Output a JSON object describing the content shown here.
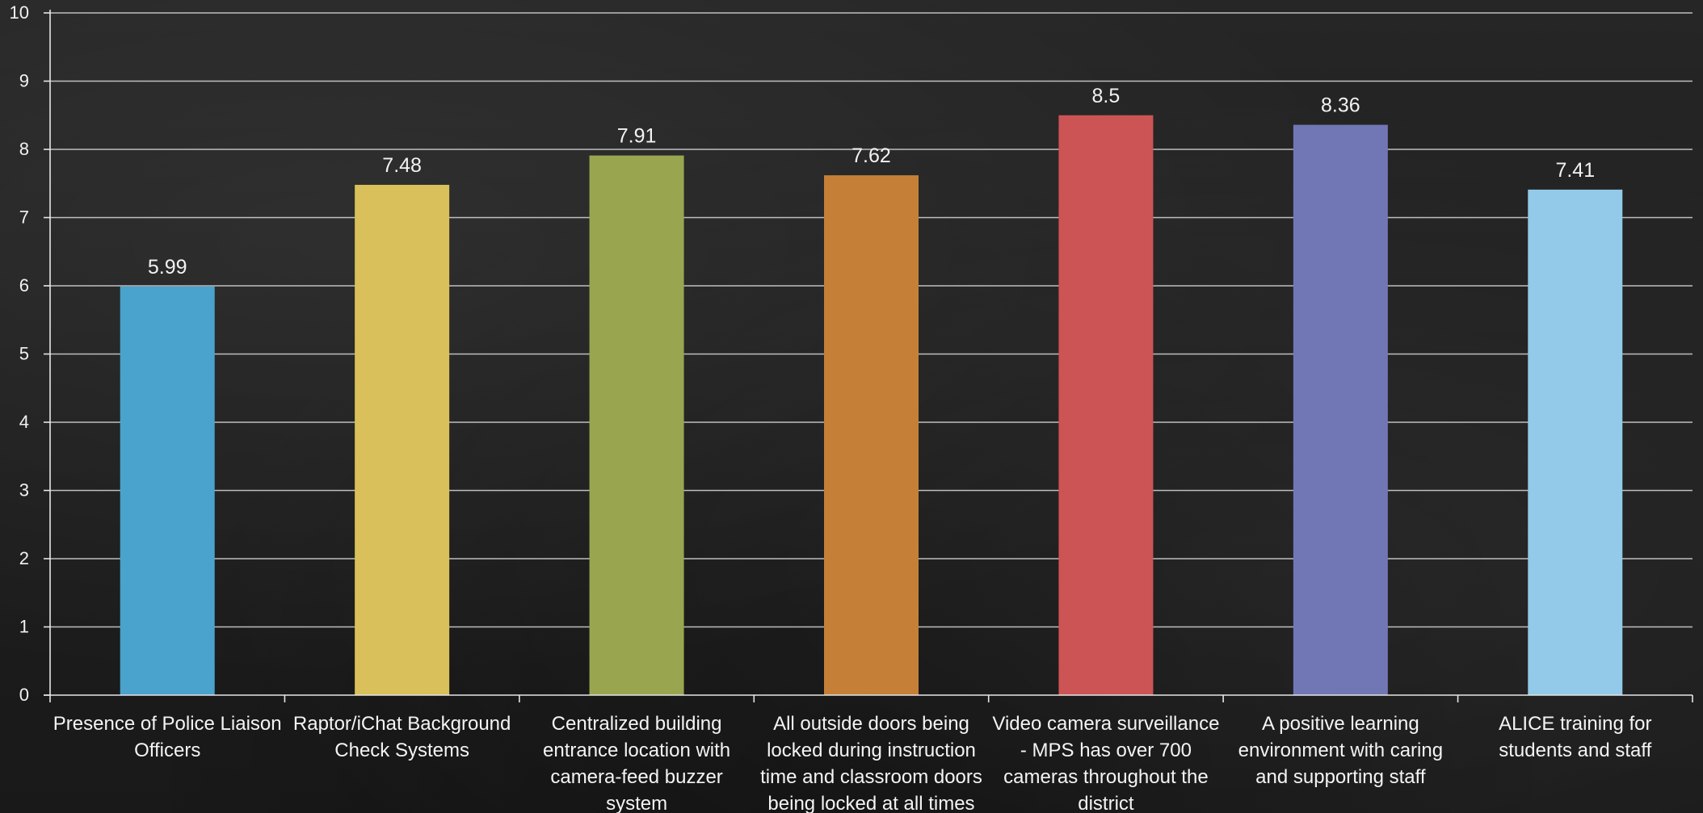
{
  "chart_data": {
    "type": "bar",
    "categories": [
      [
        "Presence of Police Liaison",
        "Officers"
      ],
      [
        "Raptor/iChat Background",
        "Check Systems"
      ],
      [
        "Centralized building",
        "entrance location with",
        "camera-feed buzzer",
        "system"
      ],
      [
        "All outside doors being",
        "locked during instruction",
        "time and classroom doors",
        "being locked at all times"
      ],
      [
        "Video camera surveillance",
        "- MPS has over 700",
        "cameras throughout the",
        "district"
      ],
      [
        "A positive learning",
        "environment with caring",
        "and supporting staff"
      ],
      [
        "ALICE training for",
        "students and staff"
      ]
    ],
    "values": [
      5.99,
      7.48,
      7.91,
      7.62,
      8.5,
      8.36,
      7.41
    ],
    "value_labels": [
      "5.99",
      "7.48",
      "7.91",
      "7.62",
      "8.5",
      "8.36",
      "7.41"
    ],
    "colors": [
      "#4aa3cc",
      "#d9c05a",
      "#9aa64f",
      "#c67f37",
      "#cc5455",
      "#7177b5",
      "#93c9e9"
    ],
    "y_ticks": [
      "0",
      "1",
      "2",
      "3",
      "4",
      "5",
      "6",
      "7",
      "8",
      "9",
      "10"
    ],
    "ylim": [
      0,
      10
    ],
    "grid": true,
    "title": "",
    "xlabel": "",
    "ylabel": ""
  }
}
